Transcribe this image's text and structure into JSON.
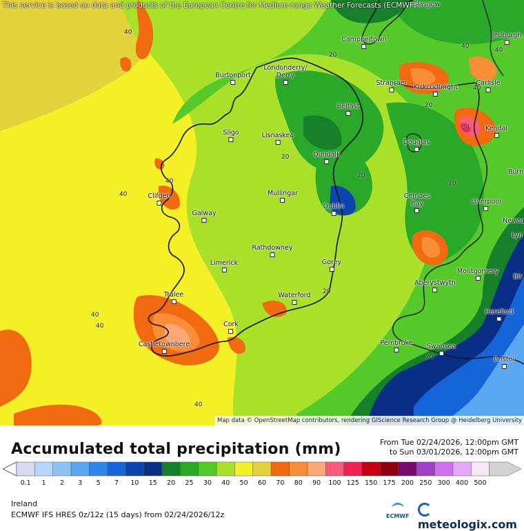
{
  "map": {
    "top_note": "This service is based on data and products of the European Centre for Medium-range Weather Forecasts (ECMWF)",
    "attribution": "Map data © OpenStreetMap contributors, rendering GIScience Research Group @ Heidelberg University",
    "cities": [
      {
        "name": "Glasgow"
      },
      {
        "name": "Jedburgh"
      },
      {
        "name": "Campbeltown"
      },
      {
        "name": "Londonderry/"
      },
      {
        "name": "Derry"
      },
      {
        "name": "Burtonport"
      },
      {
        "name": "Stranraer"
      },
      {
        "name": "Kirkcudbright"
      },
      {
        "name": "Carlisle"
      },
      {
        "name": "Belfast"
      },
      {
        "name": "Kendal"
      },
      {
        "name": "Sligo"
      },
      {
        "name": "Lisnaskea"
      },
      {
        "name": "Douglas"
      },
      {
        "name": "Dundalk"
      },
      {
        "name": "Burn"
      },
      {
        "name": "Mullingar"
      },
      {
        "name": "Clifden"
      },
      {
        "name": "Cemaes"
      },
      {
        "name": "Bay"
      },
      {
        "name": "Liverpool"
      },
      {
        "name": "Dublin"
      },
      {
        "name": "Galway"
      },
      {
        "name": "Newca"
      },
      {
        "name": "Lyn"
      },
      {
        "name": "Rathdowney"
      },
      {
        "name": "Limerick"
      },
      {
        "name": "Gorey"
      },
      {
        "name": "Montgomery"
      },
      {
        "name": "Aberystwyth"
      },
      {
        "name": "Bir"
      },
      {
        "name": "Tralee"
      },
      {
        "name": "Waterford"
      },
      {
        "name": "Hereford"
      },
      {
        "name": "Cork"
      },
      {
        "name": "Pembroke"
      },
      {
        "name": "Swansea"
      },
      {
        "name": "Castletownbere"
      },
      {
        "name": "Bristol"
      }
    ],
    "contour_labels": [
      "40",
      "40",
      "20",
      "40",
      "20",
      "40",
      "20",
      "20",
      "20",
      "34",
      "40",
      "40",
      "40",
      "40",
      "20",
      "20",
      "40"
    ]
  },
  "legend": {
    "title": "Accumulated total precipitation (mm)",
    "period_from": "From Tue 02/24/2026, 12:00pm GMT",
    "period_to": "to Sun 03/01/2026, 12:00pm GMT",
    "scale": [
      {
        "label": "0.1",
        "color": "#d8d8f2"
      },
      {
        "label": "1",
        "color": "#b4d6fa"
      },
      {
        "label": "2",
        "color": "#8cc2f6"
      },
      {
        "label": "3",
        "color": "#5aa6f0"
      },
      {
        "label": "5",
        "color": "#2f87ea"
      },
      {
        "label": "7",
        "color": "#1565d8"
      },
      {
        "label": "10",
        "color": "#0c45b0"
      },
      {
        "label": "15",
        "color": "#0a2e86"
      },
      {
        "label": "20",
        "color": "#16802a"
      },
      {
        "label": "25",
        "color": "#2aa82a"
      },
      {
        "label": "30",
        "color": "#55c82a"
      },
      {
        "label": "40",
        "color": "#a8e02a"
      },
      {
        "label": "50",
        "color": "#f4f028"
      },
      {
        "label": "60",
        "color": "#e4d23a"
      },
      {
        "label": "70",
        "color": "#f06a10"
      },
      {
        "label": "80",
        "color": "#f88e38"
      },
      {
        "label": "90",
        "color": "#fba676"
      },
      {
        "label": "100",
        "color": "#f85a7a"
      },
      {
        "label": "125",
        "color": "#f02050"
      },
      {
        "label": "150",
        "color": "#c40010"
      },
      {
        "label": "175",
        "color": "#8e0010"
      },
      {
        "label": "200",
        "color": "#7a0a70"
      },
      {
        "label": "250",
        "color": "#a040c8"
      },
      {
        "label": "300",
        "color": "#d070f0"
      },
      {
        "label": "400",
        "color": "#eaa6f6"
      },
      {
        "label": "500",
        "color": "#f6e8f6"
      },
      {
        "label": "",
        "color": "#d2d2d2"
      }
    ],
    "region": "Ireland",
    "model": "ECMWF IFS HRES 0z/12z (15 days) from 02/24/2026/12z",
    "ecmwf_logo": "ECMWF",
    "brand": "meteologix.com"
  }
}
